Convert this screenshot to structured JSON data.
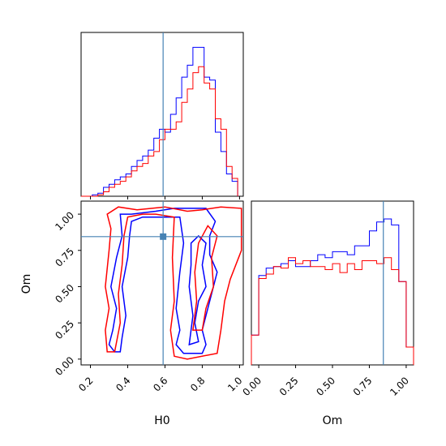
{
  "chart_data": {
    "type": "corner",
    "parameters": [
      "H0",
      "Om"
    ],
    "truth": {
      "H0": 0.59,
      "Om": 0.845
    },
    "colors": {
      "series_a": "#0000ff",
      "series_b": "#ff0000",
      "truth": "#4682b4"
    },
    "grid": false,
    "legend": "none",
    "panels": [
      {
        "name": "H0-marginal",
        "type": "histogram",
        "xlim": [
          0.15,
          1.02
        ],
        "ylim": [
          0,
          1.1
        ],
        "bin_edges": [
          0.15,
          0.18,
          0.21,
          0.24,
          0.27,
          0.3,
          0.33,
          0.36,
          0.39,
          0.42,
          0.45,
          0.48,
          0.51,
          0.54,
          0.57,
          0.6,
          0.63,
          0.66,
          0.69,
          0.72,
          0.75,
          0.78,
          0.81,
          0.84,
          0.87,
          0.9,
          0.93,
          0.96,
          0.99
        ],
        "series": [
          {
            "values": [
              0.0,
              0.0,
              0.01,
              0.02,
              0.06,
              0.08,
              0.11,
              0.13,
              0.15,
              0.2,
              0.24,
              0.27,
              0.31,
              0.39,
              0.45,
              0.43,
              0.55,
              0.66,
              0.8,
              0.88,
              1.0,
              1.0,
              0.8,
              0.78,
              0.43,
              0.3,
              0.15,
              0.1
            ]
          },
          {
            "values": [
              0.0,
              0.0,
              0.0,
              0.01,
              0.03,
              0.06,
              0.08,
              0.1,
              0.13,
              0.17,
              0.2,
              0.22,
              0.27,
              0.3,
              0.38,
              0.45,
              0.45,
              0.5,
              0.63,
              0.72,
              0.83,
              0.87,
              0.76,
              0.72,
              0.52,
              0.45,
              0.2,
              0.12
            ]
          }
        ]
      },
      {
        "name": "H0-Om-contour",
        "type": "contour",
        "xlim": [
          0.15,
          1.02
        ],
        "ylim": [
          -0.04,
          1.09
        ],
        "series": [
          {
            "contours": [
              [
                [
                  0.33,
                  0.05
                ],
                [
                  0.3,
                  0.1
                ],
                [
                  0.32,
                  0.2
                ],
                [
                  0.34,
                  0.35
                ],
                [
                  0.31,
                  0.5
                ],
                [
                  0.34,
                  0.7
                ],
                [
                  0.37,
                  0.85
                ],
                [
                  0.36,
                  1.0
                ],
                [
                  0.42,
                  1.0
                ],
                [
                  0.55,
                  1.02
                ],
                [
                  0.65,
                  1.04
                ],
                [
                  0.82,
                  1.04
                ],
                [
                  0.87,
                  0.95
                ],
                [
                  0.84,
                  0.85
                ],
                [
                  0.84,
                  0.72
                ],
                [
                  0.88,
                  0.6
                ],
                [
                  0.85,
                  0.45
                ],
                [
                  0.82,
                  0.3
                ],
                [
                  0.8,
                  0.2
                ],
                [
                  0.82,
                  0.1
                ],
                [
                  0.8,
                  0.04
                ],
                [
                  0.7,
                  0.04
                ],
                [
                  0.66,
                  0.1
                ],
                [
                  0.68,
                  0.2
                ],
                [
                  0.66,
                  0.35
                ],
                [
                  0.68,
                  0.6
                ],
                [
                  0.7,
                  0.8
                ],
                [
                  0.68,
                  0.98
                ],
                [
                  0.48,
                  0.98
                ],
                [
                  0.42,
                  0.95
                ],
                [
                  0.41,
                  0.85
                ],
                [
                  0.4,
                  0.7
                ],
                [
                  0.37,
                  0.5
                ],
                [
                  0.39,
                  0.3
                ],
                [
                  0.37,
                  0.15
                ],
                [
                  0.36,
                  0.05
                ]
              ],
              [
                [
                  0.73,
                  0.1
                ],
                [
                  0.75,
                  0.3
                ],
                [
                  0.73,
                  0.5
                ],
                [
                  0.74,
                  0.65
                ],
                [
                  0.74,
                  0.8
                ],
                [
                  0.78,
                  0.85
                ],
                [
                  0.82,
                  0.8
                ],
                [
                  0.8,
                  0.65
                ],
                [
                  0.82,
                  0.5
                ],
                [
                  0.78,
                  0.4
                ],
                [
                  0.76,
                  0.25
                ],
                [
                  0.78,
                  0.12
                ]
              ]
            ]
          },
          {
            "contours": [
              [
                [
                  0.29,
                  0.05
                ],
                [
                  0.28,
                  0.2
                ],
                [
                  0.3,
                  0.35
                ],
                [
                  0.28,
                  0.5
                ],
                [
                  0.3,
                  0.75
                ],
                [
                  0.31,
                  0.9
                ],
                [
                  0.29,
                  1.0
                ],
                [
                  0.35,
                  1.05
                ],
                [
                  0.45,
                  1.03
                ],
                [
                  0.6,
                  1.05
                ],
                [
                  0.72,
                  1.02
                ],
                [
                  0.8,
                  1.03
                ],
                [
                  0.9,
                  1.05
                ],
                [
                  1.01,
                  1.04
                ],
                [
                  1.01,
                  0.75
                ],
                [
                  0.95,
                  0.55
                ],
                [
                  0.92,
                  0.4
                ],
                [
                  0.9,
                  0.2
                ],
                [
                  0.88,
                  0.04
                ],
                [
                  0.72,
                  0.0
                ],
                [
                  0.65,
                  0.02
                ],
                [
                  0.63,
                  0.2
                ],
                [
                  0.65,
                  0.4
                ],
                [
                  0.64,
                  0.7
                ],
                [
                  0.65,
                  0.98
                ],
                [
                  0.55,
                  1.0
                ],
                [
                  0.48,
                  1.0
                ],
                [
                  0.4,
                  0.98
                ],
                [
                  0.38,
                  0.85
                ],
                [
                  0.37,
                  0.65
                ],
                [
                  0.35,
                  0.45
                ],
                [
                  0.36,
                  0.25
                ],
                [
                  0.33,
                  0.05
                ]
              ],
              [
                [
                  0.75,
                  0.2
                ],
                [
                  0.77,
                  0.4
                ],
                [
                  0.76,
                  0.6
                ],
                [
                  0.78,
                  0.8
                ],
                [
                  0.83,
                  0.92
                ],
                [
                  0.88,
                  0.85
                ],
                [
                  0.85,
                  0.7
                ],
                [
                  0.86,
                  0.5
                ],
                [
                  0.82,
                  0.35
                ],
                [
                  0.8,
                  0.2
                ]
              ]
            ]
          }
        ]
      },
      {
        "name": "Om-marginal",
        "type": "histogram",
        "xlim": [
          -0.05,
          1.05
        ],
        "ylim": [
          0,
          1.1
        ],
        "bin_edges": [
          -0.05,
          0.0,
          0.05,
          0.1,
          0.15,
          0.2,
          0.25,
          0.3,
          0.35,
          0.4,
          0.45,
          0.5,
          0.55,
          0.6,
          0.65,
          0.7,
          0.75,
          0.8,
          0.85,
          0.9,
          0.95,
          1.0,
          1.05
        ],
        "series": [
          {
            "values": [
              0.2,
              0.6,
              0.65,
              0.66,
              0.68,
              0.7,
              0.66,
              0.66,
              0.7,
              0.74,
              0.72,
              0.76,
              0.76,
              0.74,
              0.8,
              0.8,
              0.9,
              0.96,
              0.98,
              0.94,
              0.56,
              0.12
            ]
          },
          {
            "values": [
              0.2,
              0.58,
              0.61,
              0.66,
              0.65,
              0.72,
              0.68,
              0.7,
              0.66,
              0.66,
              0.64,
              0.68,
              0.62,
              0.68,
              0.64,
              0.7,
              0.7,
              0.68,
              0.72,
              0.64,
              0.56,
              0.12
            ]
          }
        ]
      }
    ],
    "axes": {
      "h0_ticks": [
        "0.2",
        "0.4",
        "0.6",
        "0.8",
        "1.0"
      ],
      "h0_tick_values": [
        0.2,
        0.4,
        0.6,
        0.8,
        1.0
      ],
      "om_ticks": [
        "0.00",
        "0.25",
        "0.50",
        "0.75",
        "1.00"
      ],
      "om_tick_values": [
        0.0,
        0.25,
        0.5,
        0.75,
        1.0
      ],
      "xlabel_h0": "H0",
      "xlabel_om": "Om",
      "ylabel_om": "Om"
    }
  }
}
